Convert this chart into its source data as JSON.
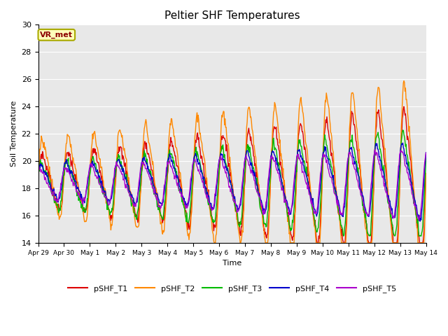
{
  "title": "Peltier SHF Temperatures",
  "xlabel": "Time",
  "ylabel": "Soil Temperature",
  "ylim": [
    14,
    30
  ],
  "annotation": "VR_met",
  "background_color": "#e8e8e8",
  "series": {
    "pSHF_T1": {
      "color": "#dd0000",
      "lw": 1.0
    },
    "pSHF_T2": {
      "color": "#ff8800",
      "lw": 1.0
    },
    "pSHF_T3": {
      "color": "#00bb00",
      "lw": 1.0
    },
    "pSHF_T4": {
      "color": "#0000cc",
      "lw": 1.0
    },
    "pSHF_T5": {
      "color": "#aa00cc",
      "lw": 1.0
    }
  },
  "xtick_labels": [
    "Apr 29",
    "Apr 30",
    "May 1",
    "May 2",
    "May 3",
    "May 4",
    "May 5",
    "May 6",
    "May 7",
    "May 8",
    "May 9",
    "May 10",
    "May 11",
    "May 12",
    "May 13",
    "May 14"
  ],
  "title_fontsize": 11,
  "figsize": [
    6.4,
    4.8
  ],
  "dpi": 100
}
